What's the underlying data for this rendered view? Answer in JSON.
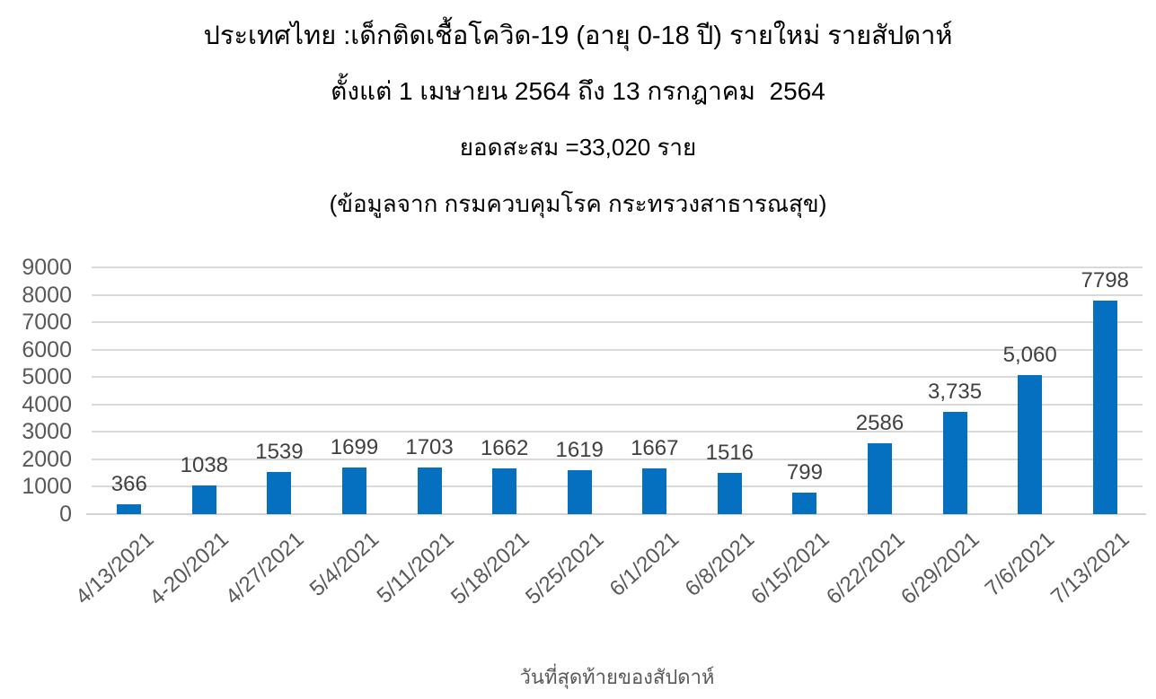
{
  "header": {
    "line1": "ประเทศไทย :เด็กติดเชื้อโควิด-19 (อายุ 0-18 ปี) รายใหม่ รายสัปดาห์",
    "line2": "ตั้งแต่ 1 เมษายน 2564 ถึง 13 กรกฎาคม  2564",
    "line3": "ยอดสะสม =33,020 ราย",
    "line4": "(ข้อมูลจาก กรมควบคุมโรค กระทรวงสาธารณสุข)"
  },
  "chart_data": {
    "type": "bar",
    "title": "ประเทศไทย :เด็กติดเชื้อโควิด-19 (อายุ 0-18 ปี) รายใหม่ รายสัปดาห์",
    "categories": [
      "4/13/2021",
      "4-20/2021",
      "4/27/2021",
      "5/4/2021",
      "5/11/2021",
      "5/18/2021",
      "5/25/2021",
      "6/1/2021",
      "6/8/2021",
      "6/15/2021",
      "6/22/2021",
      "6/29/2021",
      "7/6/2021",
      "7/13/2021"
    ],
    "values": [
      366,
      1038,
      1539,
      1699,
      1703,
      1662,
      1619,
      1667,
      1516,
      799,
      2586,
      3735,
      5060,
      7798
    ],
    "value_labels": [
      "366",
      "1038",
      "1539",
      "1699",
      "1703",
      "1662",
      "1619",
      "1667",
      "1516",
      "799",
      "2586",
      "3,735",
      "5,060",
      "7798"
    ],
    "xlabel": "วันที่สุดท้ายของสัปดาห์",
    "ylabel": "",
    "ylim": [
      0,
      9000
    ],
    "ytick_step": 1000,
    "ytick_labels": [
      "0",
      "1000",
      "2000",
      "3000",
      "4000",
      "5000",
      "6000",
      "7000",
      "8000",
      "9000"
    ],
    "grid": true,
    "legend": false,
    "colors": {
      "bar": "#0670c0",
      "gridline": "#d9d9d9",
      "axis_line": "#d3d3d3",
      "axis_text": "#595959",
      "data_label": "#404040",
      "title_text": "#000000"
    }
  }
}
